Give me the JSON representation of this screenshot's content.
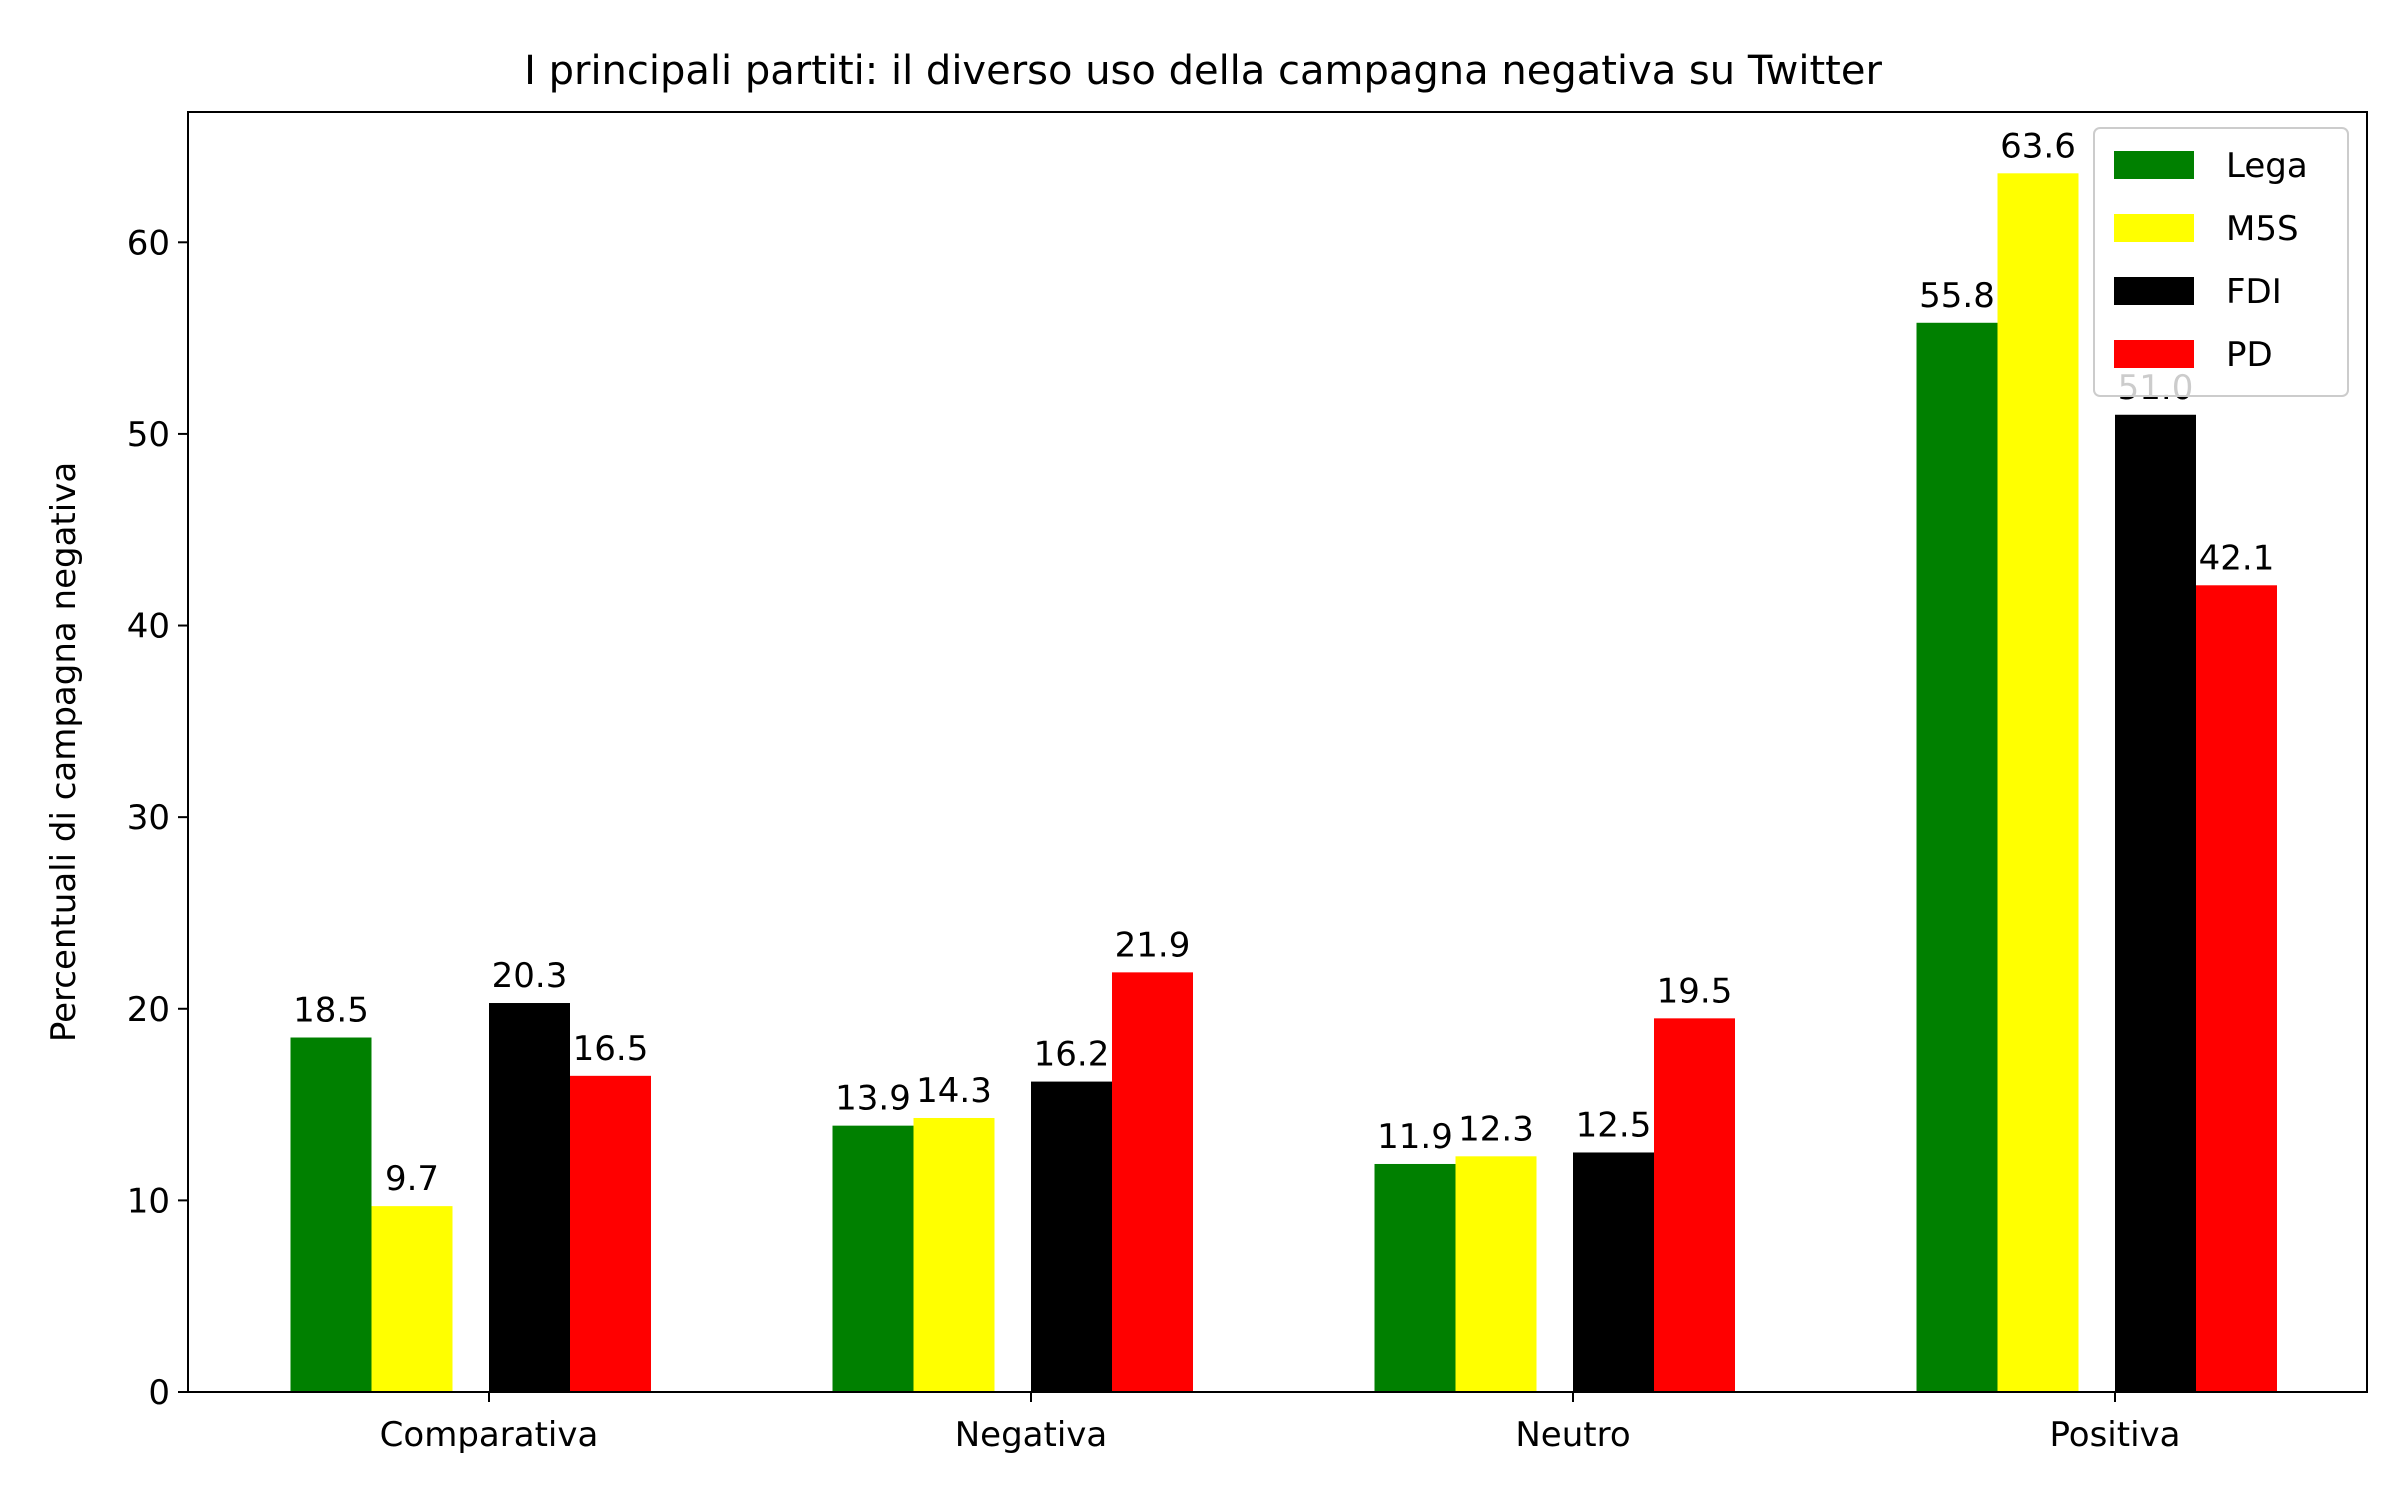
{
  "chart_data": {
    "type": "bar",
    "title": "I principali partiti: il diverso uso della campagna negativa su Twitter",
    "xlabel": "",
    "ylabel": "Percentuali di campagna negativa",
    "categories": [
      "Comparativa",
      "Negativa",
      "Neutro",
      "Positiva"
    ],
    "series": [
      {
        "name": "Lega",
        "color": "#008000",
        "values": [
          18.5,
          13.9,
          11.9,
          55.8
        ],
        "labels": [
          "18.5",
          "13.9",
          "11.9",
          "55.8"
        ]
      },
      {
        "name": "M5S",
        "color": "#ffff00",
        "values": [
          9.7,
          14.3,
          12.3,
          63.6
        ],
        "labels": [
          "9.7",
          "14.3",
          "12.3",
          "63.6"
        ]
      },
      {
        "name": "FDI",
        "color": "#000000",
        "values": [
          20.3,
          16.2,
          12.5,
          51.0
        ],
        "labels": [
          "20.3",
          "16.2",
          "12.5",
          "51.0"
        ]
      },
      {
        "name": "PD",
        "color": "#ff0000",
        "values": [
          16.5,
          21.9,
          19.5,
          42.1
        ],
        "labels": [
          "16.5",
          "21.9",
          "19.5",
          "42.1"
        ]
      }
    ],
    "ylim": [
      0,
      66.8
    ],
    "yticks": [
      0,
      10,
      20,
      30,
      40,
      50,
      60
    ],
    "ytick_labels": [
      "0",
      "10",
      "20",
      "30",
      "40",
      "50",
      "60"
    ],
    "legend_position": "top-right",
    "grid": false
  }
}
